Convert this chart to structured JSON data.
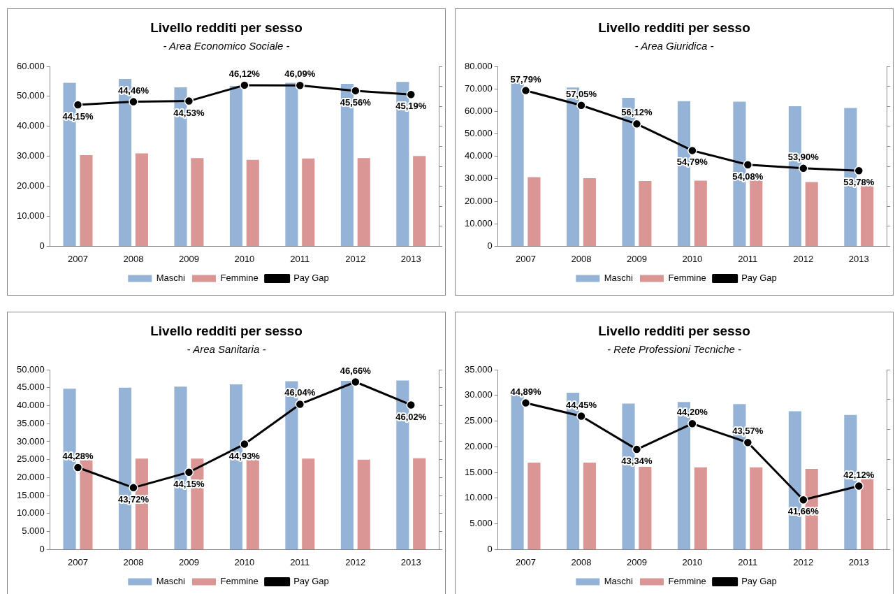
{
  "chart_data": [
    {
      "type": "bar",
      "title": "Livello redditi per sesso",
      "subtitle": "- Area Economico Sociale -",
      "categories": [
        "2007",
        "2008",
        "2009",
        "2010",
        "2011",
        "2012",
        "2013"
      ],
      "legend": "bottom",
      "grid": false,
      "marker": "circle",
      "line_style": "solid",
      "tick_labels": "xy",
      "ylim": [
        0,
        60000
      ],
      "yticks": [
        {
          "value": 0,
          "label": "0"
        },
        {
          "value": 10000,
          "label": "10.000"
        },
        {
          "value": 20000,
          "label": "20.000"
        },
        {
          "value": 30000,
          "label": "30.000"
        },
        {
          "value": 40000,
          "label": "40.000"
        },
        {
          "value": 50000,
          "label": "50.000"
        },
        {
          "value": 60000,
          "label": "60.000"
        }
      ],
      "y2lim": [
        30,
        48
      ],
      "y2ticks": [
        {
          "value": 30,
          "label": null
        },
        {
          "value": 32,
          "label": null
        },
        {
          "value": 34,
          "label": null
        },
        {
          "value": 36,
          "label": null
        },
        {
          "value": 38,
          "label": null
        },
        {
          "value": 40,
          "label": null
        },
        {
          "value": 42,
          "label": null
        },
        {
          "value": 44,
          "label": null
        },
        {
          "value": 46,
          "label": null
        },
        {
          "value": 48,
          "label": null
        }
      ],
      "series": [
        {
          "name": "Maschi",
          "color": "#95b3d7",
          "values": [
            54500,
            55800,
            53000,
            53500,
            54500,
            54200,
            54800
          ]
        },
        {
          "name": "Femmine",
          "color": "#d99694",
          "values": [
            30400,
            31000,
            29400,
            28800,
            29300,
            29400,
            30100
          ]
        },
        {
          "name": "Pay Gap",
          "type": "line",
          "axis": "y2",
          "color": "#000000",
          "values": [
            44.15,
            44.46,
            44.53,
            46.12,
            46.09,
            45.56,
            45.19
          ],
          "value_labels": [
            "44,15%",
            "44,46%",
            "44,53%",
            "46,12%",
            "46,09%",
            "45,56%",
            "45,19%"
          ]
        }
      ]
    },
    {
      "type": "bar",
      "title": "Livello redditi per sesso",
      "subtitle": "- Area Giuridica -",
      "categories": [
        "2007",
        "2008",
        "2009",
        "2010",
        "2011",
        "2012",
        "2013"
      ],
      "legend": "bottom",
      "grid": false,
      "marker": "circle",
      "line_style": "solid",
      "tick_labels": "xy",
      "ylim": [
        0,
        80000
      ],
      "yticks": [
        {
          "value": 0,
          "label": "0"
        },
        {
          "value": 10000,
          "label": "10.000"
        },
        {
          "value": 20000,
          "label": "20.000"
        },
        {
          "value": 30000,
          "label": "30.000"
        },
        {
          "value": 40000,
          "label": "40.000"
        },
        {
          "value": 50000,
          "label": "50.000"
        },
        {
          "value": 60000,
          "label": "60.000"
        },
        {
          "value": 70000,
          "label": "70.000"
        },
        {
          "value": 80000,
          "label": "80.000"
        }
      ],
      "y2lim": [
        50,
        59
      ],
      "y2ticks": [
        {
          "value": 50,
          "label": null
        },
        {
          "value": 51,
          "label": null
        },
        {
          "value": 52,
          "label": null
        },
        {
          "value": 53,
          "label": null
        },
        {
          "value": 54,
          "label": null
        },
        {
          "value": 55,
          "label": null
        },
        {
          "value": 56,
          "label": null
        },
        {
          "value": 57,
          "label": null
        },
        {
          "value": 58,
          "label": null
        },
        {
          "value": 59,
          "label": null
        }
      ],
      "series": [
        {
          "name": "Maschi",
          "color": "#95b3d7",
          "values": [
            72800,
            70600,
            66000,
            64500,
            64300,
            62300,
            61500
          ]
        },
        {
          "name": "Femmine",
          "color": "#d99694",
          "values": [
            30700,
            30300,
            29000,
            29200,
            29500,
            28600,
            28400
          ]
        },
        {
          "name": "Pay Gap",
          "type": "line",
          "axis": "y2",
          "color": "#000000",
          "values": [
            57.79,
            57.05,
            56.12,
            54.79,
            54.08,
            53.9,
            53.78
          ],
          "value_labels": [
            "57,79%",
            "57,05%",
            "56,12%",
            "54,79%",
            "54,08%",
            "53,90%",
            "53,78%"
          ]
        }
      ]
    },
    {
      "type": "bar",
      "title": "Livello redditi per sesso",
      "subtitle": "- Area Sanitaria -",
      "categories": [
        "2007",
        "2008",
        "2009",
        "2010",
        "2011",
        "2012",
        "2013"
      ],
      "legend": "bottom",
      "grid": false,
      "marker": "circle",
      "line_style": "solid",
      "tick_labels": "xy",
      "ylim": [
        0,
        50000
      ],
      "yticks": [
        {
          "value": 0,
          "label": "0"
        },
        {
          "value": 5000,
          "label": "5.000"
        },
        {
          "value": 10000,
          "label": "10.000"
        },
        {
          "value": 15000,
          "label": "15.000"
        },
        {
          "value": 20000,
          "label": "20.000"
        },
        {
          "value": 25000,
          "label": "25.000"
        },
        {
          "value": 30000,
          "label": "30.000"
        },
        {
          "value": 35000,
          "label": "35.000"
        },
        {
          "value": 40000,
          "label": "40.000"
        },
        {
          "value": 45000,
          "label": "45.000"
        },
        {
          "value": 50000,
          "label": "50.000"
        }
      ],
      "y2lim": [
        42,
        47
      ],
      "y2ticks": [
        {
          "value": 42,
          "label": null
        },
        {
          "value": 42.5,
          "label": null
        },
        {
          "value": 43,
          "label": null
        },
        {
          "value": 43.5,
          "label": null
        },
        {
          "value": 44,
          "label": null
        },
        {
          "value": 44.5,
          "label": null
        },
        {
          "value": 45,
          "label": null
        },
        {
          "value": 45.5,
          "label": null
        },
        {
          "value": 46,
          "label": null
        },
        {
          "value": 46.5,
          "label": null
        },
        {
          "value": 47,
          "label": null
        }
      ],
      "series": [
        {
          "name": "Maschi",
          "color": "#95b3d7",
          "values": [
            44700,
            45000,
            45300,
            45900,
            46800,
            46900,
            47000
          ]
        },
        {
          "name": "Femmine",
          "color": "#d99694",
          "values": [
            24900,
            25300,
            25300,
            25300,
            25300,
            25000,
            25400
          ]
        },
        {
          "name": "Pay Gap",
          "type": "line",
          "axis": "y2",
          "color": "#000000",
          "values": [
            44.28,
            43.72,
            44.15,
            44.93,
            46.04,
            46.66,
            46.02
          ],
          "value_labels": [
            "44,28%",
            "43,72%",
            "44,15%",
            "44,93%",
            "46,04%",
            "46,66%",
            "46,02%"
          ]
        }
      ]
    },
    {
      "type": "bar",
      "title": "Livello redditi per sesso",
      "subtitle": "- Rete Professioni Tecniche -",
      "categories": [
        "2007",
        "2008",
        "2009",
        "2010",
        "2011",
        "2012",
        "2013"
      ],
      "legend": "bottom",
      "grid": false,
      "marker": "circle",
      "line_style": "solid",
      "tick_labels": "xy",
      "ylim": [
        0,
        35000
      ],
      "yticks": [
        {
          "value": 0,
          "label": "0"
        },
        {
          "value": 5000,
          "label": "5.000"
        },
        {
          "value": 10000,
          "label": "10.000"
        },
        {
          "value": 15000,
          "label": "15.000"
        },
        {
          "value": 20000,
          "label": "20.000"
        },
        {
          "value": 25000,
          "label": "25.000"
        },
        {
          "value": 30000,
          "label": "30.000"
        },
        {
          "value": 35000,
          "label": "35.000"
        }
      ],
      "y2lim": [
        40,
        46
      ],
      "y2ticks": [
        {
          "value": 40,
          "label": null
        },
        {
          "value": 41,
          "label": null
        },
        {
          "value": 42,
          "label": null
        },
        {
          "value": 43,
          "label": null
        },
        {
          "value": 44,
          "label": null
        },
        {
          "value": 45,
          "label": null
        },
        {
          "value": 46,
          "label": null
        }
      ],
      "series": [
        {
          "name": "Maschi",
          "color": "#95b3d7",
          "values": [
            30700,
            30500,
            28400,
            28700,
            28300,
            26900,
            26200
          ]
        },
        {
          "name": "Femmine",
          "color": "#d99694",
          "values": [
            16900,
            16900,
            16100,
            16000,
            16000,
            15700,
            15200
          ]
        },
        {
          "name": "Pay Gap",
          "type": "line",
          "axis": "y2",
          "color": "#000000",
          "values": [
            44.89,
            44.45,
            43.34,
            44.2,
            43.57,
            41.66,
            42.12
          ],
          "value_labels": [
            "44,89%",
            "44,45%",
            "43,34%",
            "44,20%",
            "43,57%",
            "41,66%",
            "42,12%"
          ]
        }
      ]
    }
  ]
}
